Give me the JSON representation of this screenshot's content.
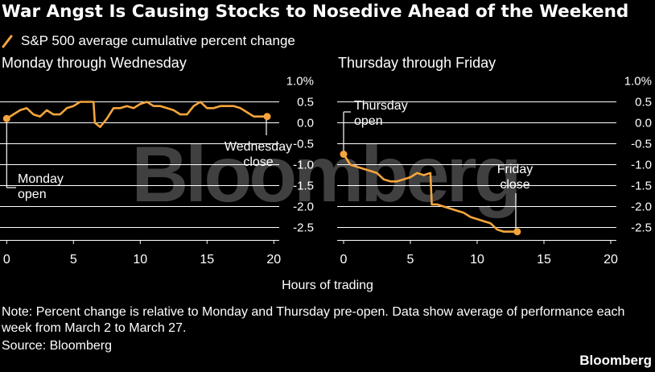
{
  "title": "War Angst Is Causing Stocks to Nosedive Ahead of the Weekend",
  "legend": "S&P 500 average cumulative percent change",
  "note": "Note: Percent change is relative to Monday and Thursday pre-open. Data show average of performance each week from March 2 to March 27.",
  "source": "Source: Bloomberg",
  "brand": "Bloomberg",
  "watermark": "Bloomberg",
  "colors": {
    "background": "#000000",
    "line": "#f5a53c",
    "text": "#ffffff",
    "grid": "#ffffff",
    "watermark": "#404040"
  },
  "chart_data": [
    {
      "type": "line",
      "title": "Monday through Wednesday",
      "xlabel": "Hours of trading",
      "ylabel": "",
      "xlim": [
        -0.5,
        20.5
      ],
      "ylim": [
        -2.75,
        1.0
      ],
      "x_ticks": [
        0,
        5,
        10,
        15,
        20
      ],
      "y_ticks": [
        1.0,
        0.5,
        0.0,
        -0.5,
        -1.0,
        -1.5,
        -2.0,
        -2.5
      ],
      "y_tick_labels": [
        "1.0%",
        "0.5",
        "0.0",
        "-0.5",
        "-1.0",
        "-1.5",
        "-2.0",
        "-2.5"
      ],
      "series": [
        {
          "name": "S&P 500 average cumulative percent change",
          "x": [
            0,
            0.5,
            1,
            1.5,
            2,
            2.5,
            3,
            3.5,
            4,
            4.5,
            5,
            5.5,
            6,
            6.5,
            6.6,
            7,
            7.5,
            8,
            8.5,
            9,
            9.5,
            10,
            10.5,
            11,
            11.5,
            12,
            12.5,
            13,
            13.5,
            14,
            14.5,
            15,
            15.5,
            16,
            16.5,
            17,
            17.5,
            18,
            18.5,
            19,
            19.5
          ],
          "values": [
            0.1,
            0.2,
            0.3,
            0.35,
            0.2,
            0.15,
            0.3,
            0.2,
            0.2,
            0.35,
            0.4,
            0.5,
            0.5,
            0.5,
            0.0,
            -0.1,
            0.1,
            0.35,
            0.35,
            0.4,
            0.35,
            0.45,
            0.5,
            0.4,
            0.4,
            0.35,
            0.3,
            0.2,
            0.2,
            0.4,
            0.5,
            0.35,
            0.35,
            0.4,
            0.4,
            0.4,
            0.35,
            0.25,
            0.15,
            0.15,
            0.15
          ]
        }
      ],
      "annotations": [
        {
          "label": "Monday open",
          "x": 0,
          "y": 0.1
        },
        {
          "label": "Wednesday close",
          "x": 19.5,
          "y": 0.15
        }
      ]
    },
    {
      "type": "line",
      "title": "Thursday through Friday",
      "xlabel": "Hours of trading",
      "ylabel": "",
      "xlim": [
        -0.5,
        20.5
      ],
      "ylim": [
        -2.75,
        1.0
      ],
      "x_ticks": [
        0,
        5,
        10,
        15,
        20
      ],
      "y_ticks": [
        1.0,
        0.5,
        0.0,
        -0.5,
        -1.0,
        -1.5,
        -2.0,
        -2.5
      ],
      "y_tick_labels": [
        "1.0%",
        "0.5",
        "0.0",
        "-0.5",
        "-1.0",
        "-1.5",
        "-2.0",
        "-2.5"
      ],
      "series": [
        {
          "name": "S&P 500 average cumulative percent change",
          "x": [
            0,
            0.5,
            1,
            1.5,
            2,
            2.5,
            3,
            3.5,
            4,
            4.5,
            5,
            5.5,
            6,
            6.5,
            6.6,
            7,
            7.5,
            8,
            8.5,
            9,
            9.5,
            10,
            10.5,
            11,
            11.5,
            12,
            12.5,
            13
          ],
          "values": [
            -0.75,
            -1.0,
            -1.05,
            -1.1,
            -1.15,
            -1.2,
            -1.35,
            -1.4,
            -1.4,
            -1.35,
            -1.3,
            -1.2,
            -1.25,
            -1.2,
            -1.95,
            -1.95,
            -2.0,
            -2.05,
            -2.1,
            -2.15,
            -2.25,
            -2.3,
            -2.35,
            -2.4,
            -2.55,
            -2.6,
            -2.6,
            -2.6
          ]
        }
      ],
      "annotations": [
        {
          "label": "Thursday open",
          "x": 0,
          "y": -0.75
        },
        {
          "label": "Friday close",
          "x": 13,
          "y": -2.6
        }
      ]
    }
  ],
  "annotation_lines": {
    "monday_open": [
      "Monday",
      "open"
    ],
    "wednesday_close": [
      "Wednesday",
      "close"
    ],
    "thursday_open": [
      "Thursday",
      "open"
    ],
    "friday_close": [
      "Friday",
      "close"
    ]
  }
}
